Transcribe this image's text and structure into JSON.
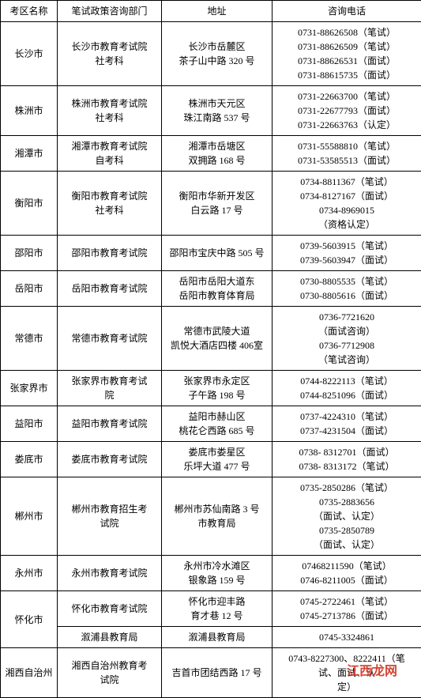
{
  "headers": [
    "考区名称",
    "笔试政策咨询部门",
    "地址",
    "咨询电话"
  ],
  "watermark": "江西龙网",
  "colors": {
    "border": "#000000",
    "background": "#ffffff",
    "watermark": "#d43a2b"
  },
  "rows": [
    {
      "region": "长沙市",
      "dept": "长沙市教育考试院\n社考科",
      "address": "长沙市岳麓区\n茶子山中路 320 号",
      "phones": [
        "0731-88626508（笔试）",
        "0731-88626509（笔试）",
        "0731-88626531（面试）",
        "0731-88615735（面试）"
      ]
    },
    {
      "region": "株洲市",
      "dept": "株洲市教育考试院\n社考科",
      "address": "株洲市天元区\n珠江南路 537 号",
      "phones": [
        "0731-22663700（笔试）",
        "0731-22677793（面试）",
        "0731-22663763（认定）"
      ]
    },
    {
      "region": "湘潭市",
      "dept": "湘潭市教育考试院\n自考科",
      "address": "湘潭市岳塘区\n双拥路 168 号",
      "phones": [
        "0731-55588810（笔试）",
        "0731-53585513（面试）"
      ]
    },
    {
      "region": "衡阳市",
      "dept": "衡阳市教育考试院\n社考科",
      "address": "衡阳市华新开发区\n白云路 17 号",
      "phones": [
        "0734-8811367（笔试）",
        "0734-8127167（面试）",
        "0734-8969015",
        "（资格认定）"
      ]
    },
    {
      "region": "邵阳市",
      "dept": "邵阳市教育考试院",
      "address": "邵阳市宝庆中路 505 号",
      "phones": [
        "0739-5603915（笔试）",
        "0739-5603947（面试）"
      ]
    },
    {
      "region": "岳阳市",
      "dept": "岳阳市教育考试院",
      "address": "岳阳市岳阳大道东\n岳阳市教育体育局",
      "phones": [
        "0730-8805535（笔试）",
        "0730-8805616（面试）"
      ]
    },
    {
      "region": "常德市",
      "dept": "常德市教育考试院",
      "address": "常德市武陵大道\n凯悦大酒店四楼 406室",
      "phones": [
        "0736-7721620",
        "（面试咨询）",
        "0736-7712908",
        "（笔试咨询）"
      ]
    },
    {
      "region": "张家界市",
      "dept": "张家界市教育考试\n院",
      "address": "张家界市永定区\n子午路 198 号",
      "phones": [
        "0744-8222113（笔试）",
        "0744-8251096（面试）"
      ]
    },
    {
      "region": "益阳市",
      "dept": "益阳市教育考试院",
      "address": "益阳市赫山区\n桃花仑西路 685 号",
      "phones": [
        "0737-4224310（笔试）",
        "0737-4231504（面试）"
      ]
    },
    {
      "region": "娄底市",
      "dept": "娄底市教育考试院",
      "address": "娄底市娄星区\n乐坪大道 477 号",
      "phones": [
        "0738- 8312701（面试）",
        "0738- 8313172（笔试）"
      ]
    },
    {
      "region": "郴州市",
      "dept": "郴州市教育招生考\n试院",
      "address": "郴州市苏仙南路 3 号\n市教育局",
      "phones": [
        "0735-2850286（笔试）",
        "0735-2883656",
        "（面试、认定）",
        "0735-2850789",
        "（面试、认定）"
      ]
    },
    {
      "region": "永州市",
      "dept": "永州市教育考试院",
      "address": "永州市冷水滩区\n银象路 159 号",
      "phones": [
        "07468211590（笔试）",
        "0746-8211005（面试）"
      ]
    },
    {
      "region": "怀化市",
      "dept": "怀化市教育考试院",
      "address": "怀化市迎丰路\n育才巷 12 号",
      "phones": [
        "0745-2722461（笔试）",
        "0745-2713786（面试）"
      ]
    },
    {
      "region": "",
      "dept": "溆浦县教育局",
      "address": "溆浦县教育局",
      "phones": [
        "0745-3324861"
      ]
    },
    {
      "region": "湘西自治州",
      "dept": "湘西自治州教育考\n试院",
      "address": "吉首市团结西路 17 号",
      "phones": [
        "0743-8227300、8222411（笔",
        "试、面试、认",
        "定）"
      ]
    }
  ]
}
